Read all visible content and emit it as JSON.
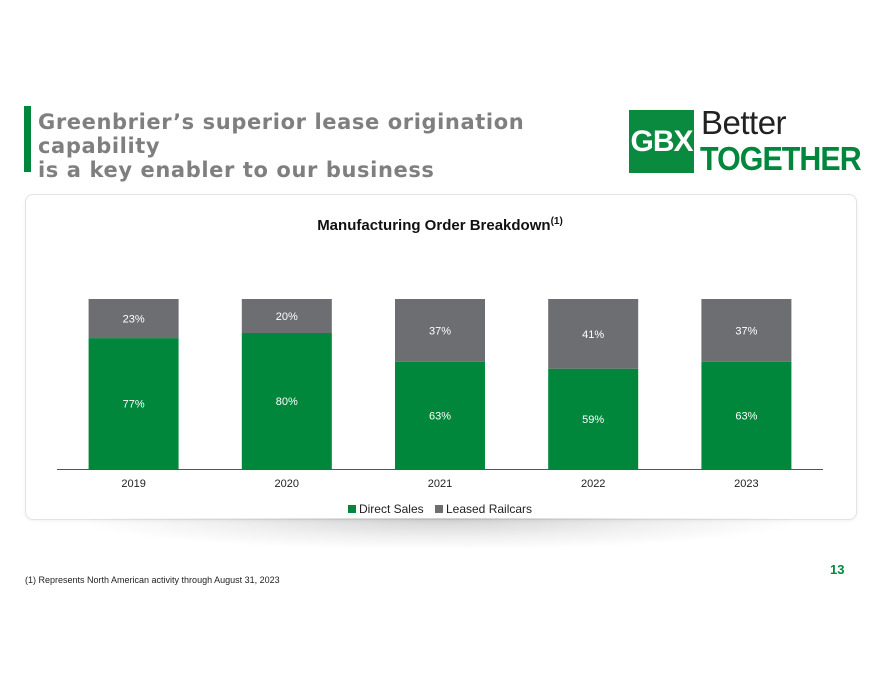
{
  "header": {
    "title_line1": "Greenbrier’s superior lease origination capability",
    "title_line2": "is a key enabler to our business"
  },
  "logo": {
    "mark": "GBX",
    "word1": "Better",
    "word2": "TOGETHER"
  },
  "colors": {
    "accent": "#00873c",
    "direct": "#00873c",
    "leased": "#6d6e71"
  },
  "chart_data": {
    "type": "bar",
    "stacked": true,
    "percent": true,
    "title": "Manufacturing Order Breakdown",
    "title_superscript": "(1)",
    "categories": [
      "2019",
      "2020",
      "2021",
      "2022",
      "2023"
    ],
    "series": [
      {
        "name": "Direct Sales",
        "values": [
          77,
          80,
          63,
          59,
          63
        ],
        "labels": [
          "77%",
          "80%",
          "63%",
          "59%",
          "63%"
        ]
      },
      {
        "name": "Leased Railcars",
        "values": [
          23,
          20,
          37,
          41,
          37
        ],
        "labels": [
          "23%",
          "20%",
          "37%",
          "41%",
          "37%"
        ]
      }
    ],
    "ylim": [
      0,
      100
    ],
    "xlabel": "",
    "ylabel": "",
    "grid": false,
    "legend_position": "bottom"
  },
  "legend": {
    "direct_label": "Direct Sales",
    "leased_label": "Leased Railcars"
  },
  "footer": {
    "footnote": "(1) Represents North American activity through August 31, 2023",
    "page_number": "13"
  }
}
